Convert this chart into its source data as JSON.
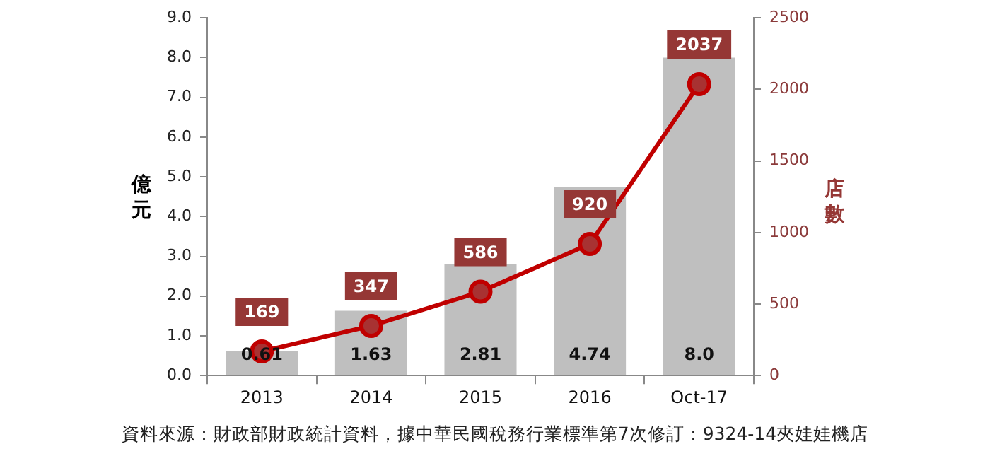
{
  "chart_data": {
    "type": "bar",
    "categories": [
      "2013",
      "2014",
      "2015",
      "2016",
      "Oct-17"
    ],
    "ylabel": "億元",
    "y2label": "店數",
    "series": [
      {
        "color": "#bfbfbf",
        "values": [
          0.61,
          1.63,
          2.81,
          4.74,
          8.0
        ],
        "value_labels": [
          "0.61",
          "1.63",
          "2.81",
          "4.74",
          "8.0"
        ]
      },
      {
        "type": "line",
        "axis": "y2",
        "color": "#c00000",
        "values": [
          169,
          347,
          586,
          920,
          2037
        ],
        "value_labels": [
          "169",
          "347",
          "586",
          "920",
          "2037"
        ]
      }
    ],
    "ylim": [
      0,
      9
    ],
    "yticks": [
      {
        "value": 0,
        "label": "0.0"
      },
      {
        "value": 1,
        "label": "1.0"
      },
      {
        "value": 2,
        "label": "2.0"
      },
      {
        "value": 3,
        "label": "3.0"
      },
      {
        "value": 4,
        "label": "4.0"
      },
      {
        "value": 5,
        "label": "5.0"
      },
      {
        "value": 6,
        "label": "6.0"
      },
      {
        "value": 7,
        "label": "7.0"
      },
      {
        "value": 8,
        "label": "8.0"
      },
      {
        "value": 9,
        "label": "9.0"
      }
    ],
    "y2lim": [
      0,
      2500
    ],
    "y2ticks": [
      0,
      500,
      1000,
      1500,
      2000,
      2500
    ],
    "marker": "circle",
    "grid": false,
    "legend": false,
    "annotations": [
      "資料來源：財政部財政統計資料，據中華民國稅務行業標準第7次修訂：9324-14夾娃娃機店"
    ]
  }
}
